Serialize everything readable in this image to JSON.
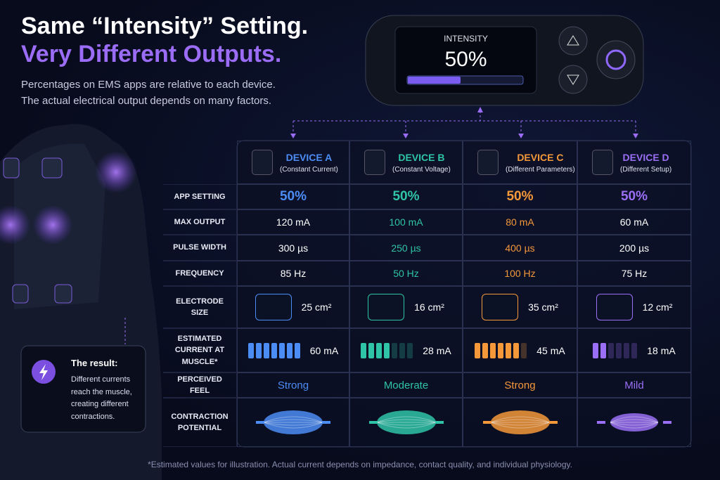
{
  "header": {
    "title_line1": "Same “Intensity” Setting.",
    "title_line2": "Very Different Outputs.",
    "subtitle_line1": "Percentages on EMS apps are relative to each device.",
    "subtitle_line2": "The actual electrical output depends on many factors."
  },
  "device": {
    "label": "INTENSITY",
    "value": "50%"
  },
  "table": {
    "columns": [
      {
        "name": "DEVICE A",
        "note": "(Constant Current)",
        "color": "#4b8cf5"
      },
      {
        "name": "DEVICE B",
        "note": "(Constant Voltage)",
        "color": "#2fc4a8"
      },
      {
        "name": "DEVICE C",
        "note": "(Different Parameters)",
        "color": "#f5983a"
      },
      {
        "name": "DEVICE D",
        "note": "(Different Setup)",
        "color": "#9a6ff5"
      }
    ],
    "rows": [
      {
        "label": "APP SETTING",
        "cells": [
          "50%",
          "50%",
          "50%",
          "50%"
        ]
      },
      {
        "label": "MAX OUTPUT",
        "cells": [
          "120 mA",
          "100 mA",
          "80 mA",
          "60 mA"
        ]
      },
      {
        "label": "PULSE WIDTH",
        "cells": [
          "300 µs",
          "250 µs",
          "400 µs",
          "200 µs"
        ]
      },
      {
        "label": "FREQUENCY",
        "cells": [
          "85 Hz",
          "50 Hz",
          "100 Hz",
          "75 Hz"
        ]
      },
      {
        "label": "ELECTRODE SIZE",
        "cells": [
          "25 cm²",
          "16 cm²",
          "35 cm²",
          "12 cm²"
        ]
      },
      {
        "label": "ESTIMATED CURRENT AT MUSCLE*",
        "cells": [
          "60 mA",
          "28 mA",
          "45 mA",
          "18 mA"
        ]
      },
      {
        "label": "PERCEIVED FEEL",
        "cells": [
          "Strong",
          "Moderate",
          "Strong",
          "Mild"
        ]
      },
      {
        "label": "CONTRACTION POTENTIAL"
      }
    ]
  },
  "result": {
    "title": "The result:",
    "text": "Different currents reach the muscle, creating different contractions."
  },
  "footnote": "*Estimated values for illustration. Actual current depends on impedance, contact quality, and individual physiology."
}
